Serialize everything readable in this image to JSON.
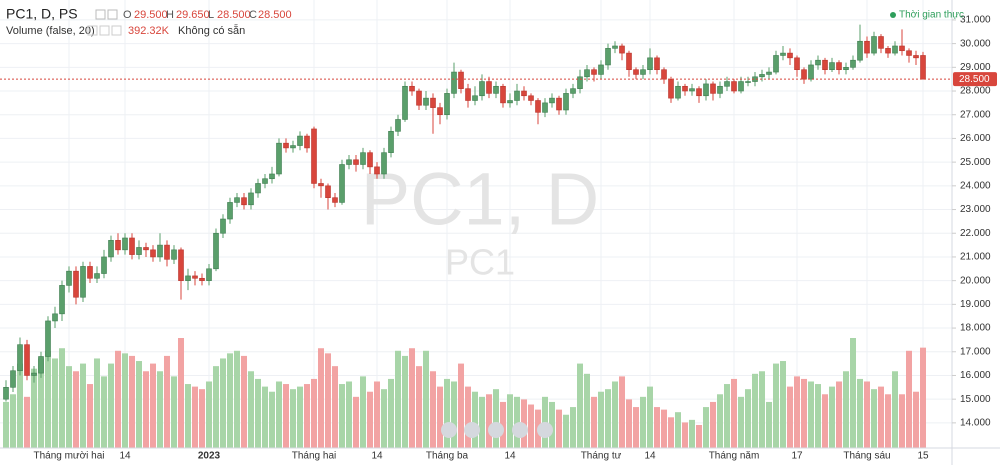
{
  "header": {
    "symbol": "PC1, D, PS",
    "o_label": "O",
    "open": "29.500",
    "h_label": "H",
    "high": "29.650",
    "l_label": "L",
    "low": "28.500",
    "c_label": "C",
    "close": "28.500",
    "volume_title": "Volume (false, 20)",
    "volume_value": "392.32K",
    "volume_note": "Không có sẵn",
    "realtime": "Thời gian thực",
    "watermark": "PC1, D",
    "watermark_sub": "PC1"
  },
  "chart_data": {
    "type": "candlestick",
    "categories": [
      null,
      null,
      null,
      null,
      null,
      null,
      null,
      null,
      null,
      "Tháng mười hai",
      null,
      null,
      null,
      null,
      null,
      null,
      null,
      "14",
      null,
      null,
      null,
      null,
      null,
      null,
      null,
      null,
      null,
      null,
      null,
      "2023",
      null,
      null,
      null,
      null,
      null,
      null,
      null,
      null,
      null,
      null,
      null,
      null,
      null,
      null,
      "Tháng hai",
      null,
      null,
      null,
      null,
      null,
      null,
      null,
      null,
      "14",
      null,
      null,
      null,
      null,
      null,
      null,
      null,
      null,
      null,
      "Tháng ba",
      null,
      null,
      null,
      null,
      null,
      null,
      null,
      null,
      "14",
      null,
      null,
      null,
      null,
      null,
      null,
      null,
      null,
      null,
      null,
      null,
      null,
      "Tháng tư",
      null,
      null,
      null,
      null,
      null,
      null,
      "14",
      null,
      null,
      null,
      null,
      null,
      null,
      null,
      null,
      null,
      null,
      null,
      "Tháng năm",
      null,
      null,
      null,
      null,
      null,
      null,
      null,
      null,
      "17",
      null,
      null,
      null,
      null,
      null,
      null,
      null,
      null,
      null,
      "Tháng sáu",
      null,
      null,
      null,
      null,
      null,
      null,
      null,
      "15"
    ],
    "open": [
      15.0,
      15.5,
      16.2,
      17.3,
      16.0,
      16.1,
      16.8,
      18.3,
      18.6,
      19.8,
      20.4,
      19.3,
      20.6,
      20.1,
      20.3,
      21.0,
      21.7,
      21.3,
      21.8,
      21.1,
      21.4,
      21.3,
      21.0,
      21.5,
      20.9,
      21.3,
      20.0,
      20.2,
      20.1,
      20.0,
      20.5,
      22.0,
      22.6,
      23.3,
      23.5,
      23.2,
      23.7,
      24.1,
      24.3,
      24.5,
      25.8,
      25.6,
      25.7,
      26.1,
      26.4,
      24.1,
      24.0,
      23.5,
      23.3,
      24.9,
      25.1,
      24.9,
      25.4,
      24.8,
      24.5,
      25.4,
      26.3,
      26.8,
      28.2,
      28.0,
      27.4,
      27.7,
      27.3,
      27.0,
      27.9,
      28.8,
      28.1,
      27.6,
      27.8,
      28.4,
      27.9,
      28.2,
      27.5,
      27.6,
      28.0,
      27.8,
      27.6,
      27.1,
      27.5,
      27.7,
      27.2,
      27.9,
      28.1,
      28.6,
      28.9,
      28.7,
      29.1,
      29.8,
      29.9,
      29.6,
      28.9,
      28.7,
      28.9,
      29.4,
      28.9,
      28.5,
      27.7,
      28.2,
      28.0,
      28.1,
      27.8,
      28.3,
      27.9,
      28.2,
      28.4,
      28.0,
      28.4,
      28.4,
      28.6,
      28.7,
      28.8,
      29.5,
      29.6,
      29.4,
      28.9,
      28.5,
      29.1,
      29.3,
      28.9,
      29.2,
      28.9,
      29.0,
      29.3,
      30.1,
      29.6,
      30.3,
      29.8,
      29.6,
      29.9,
      29.7,
      29.5,
      29.5
    ],
    "high": [
      15.8,
      16.4,
      17.6,
      17.5,
      16.4,
      17.0,
      18.5,
      18.9,
      20.0,
      20.6,
      20.6,
      20.8,
      20.8,
      20.6,
      21.3,
      21.9,
      22.0,
      22.0,
      22.0,
      21.7,
      21.6,
      21.5,
      22.0,
      21.7,
      21.5,
      21.4,
      20.5,
      20.4,
      20.3,
      20.7,
      22.2,
      22.8,
      23.5,
      23.7,
      23.7,
      23.9,
      24.3,
      24.5,
      24.8,
      26.0,
      26.0,
      25.9,
      26.3,
      26.2,
      26.5,
      24.3,
      24.1,
      23.7,
      25.1,
      25.3,
      25.3,
      25.6,
      25.5,
      25.0,
      25.6,
      26.5,
      27.0,
      28.4,
      28.4,
      28.1,
      28.0,
      27.9,
      27.5,
      28.1,
      29.2,
      28.9,
      28.3,
      28.2,
      28.7,
      28.6,
      28.4,
      28.3,
      27.9,
      28.3,
      28.2,
      27.9,
      27.7,
      27.7,
      27.9,
      27.8,
      28.1,
      28.3,
      28.9,
      29.1,
      29.0,
      29.3,
      30.0,
      30.1,
      30.0,
      29.7,
      29.0,
      29.1,
      29.8,
      29.5,
      29.0,
      28.6,
      28.4,
      28.3,
      28.3,
      28.2,
      28.5,
      28.4,
      28.4,
      28.6,
      28.5,
      28.6,
      28.6,
      28.8,
      28.9,
      29.0,
      29.7,
      29.9,
      29.8,
      29.5,
      29.0,
      29.3,
      29.5,
      29.4,
      29.4,
      29.3,
      29.2,
      29.5,
      30.8,
      30.3,
      30.5,
      30.4,
      29.9,
      30.1,
      30.6,
      29.8,
      29.7,
      29.65
    ],
    "low": [
      14.9,
      15.3,
      16.0,
      15.8,
      15.7,
      15.9,
      16.6,
      18.0,
      18.3,
      19.5,
      19.0,
      19.1,
      19.9,
      19.9,
      20.1,
      20.8,
      21.1,
      21.1,
      20.9,
      20.9,
      21.0,
      20.8,
      20.8,
      20.6,
      20.7,
      19.2,
      19.6,
      19.8,
      19.8,
      19.8,
      20.4,
      21.8,
      22.4,
      23.1,
      23.0,
      23.0,
      23.5,
      23.9,
      24.1,
      24.4,
      25.4,
      25.4,
      25.5,
      25.4,
      23.9,
      23.5,
      23.0,
      23.1,
      23.2,
      24.7,
      24.6,
      24.7,
      24.5,
      24.3,
      24.3,
      25.2,
      26.1,
      26.7,
      27.8,
      27.2,
      27.2,
      26.2,
      26.6,
      26.8,
      27.7,
      27.9,
      27.3,
      27.4,
      27.6,
      27.7,
      27.7,
      27.3,
      27.3,
      27.4,
      27.6,
      27.4,
      26.6,
      26.9,
      27.3,
      27.0,
      27.0,
      27.7,
      27.9,
      28.4,
      28.4,
      28.5,
      28.9,
      29.6,
      29.3,
      28.6,
      28.5,
      28.5,
      28.7,
      28.7,
      28.3,
      27.5,
      27.6,
      27.8,
      27.8,
      27.5,
      27.6,
      27.6,
      27.7,
      28.0,
      27.9,
      27.9,
      28.2,
      28.2,
      28.4,
      28.5,
      28.7,
      29.3,
      29.1,
      28.6,
      28.3,
      28.4,
      28.9,
      28.7,
      28.8,
      28.7,
      28.7,
      28.9,
      29.2,
      29.4,
      29.5,
      29.6,
      29.4,
      29.5,
      29.5,
      29.2,
      29.1,
      28.5
    ],
    "close": [
      15.5,
      16.2,
      17.3,
      16.0,
      16.1,
      16.8,
      18.3,
      18.6,
      19.8,
      20.4,
      19.3,
      20.6,
      20.1,
      20.3,
      21.0,
      21.7,
      21.3,
      21.8,
      21.1,
      21.4,
      21.3,
      21.0,
      21.5,
      20.9,
      21.3,
      20.0,
      20.2,
      20.1,
      20.0,
      20.5,
      22.0,
      22.6,
      23.3,
      23.5,
      23.2,
      23.7,
      24.1,
      24.3,
      24.5,
      25.8,
      25.6,
      25.7,
      26.1,
      25.6,
      24.1,
      24.0,
      23.5,
      23.3,
      24.9,
      25.1,
      24.9,
      25.4,
      24.8,
      24.5,
      25.4,
      26.3,
      26.8,
      28.2,
      28.0,
      27.4,
      27.7,
      27.3,
      27.0,
      27.9,
      28.8,
      28.1,
      27.6,
      27.8,
      28.4,
      27.9,
      28.2,
      27.5,
      27.6,
      28.0,
      27.8,
      27.6,
      27.1,
      27.5,
      27.7,
      27.2,
      27.9,
      28.1,
      28.6,
      28.9,
      28.7,
      29.1,
      29.8,
      29.9,
      29.6,
      28.9,
      28.7,
      28.9,
      29.4,
      28.9,
      28.5,
      27.7,
      28.2,
      28.0,
      28.1,
      27.8,
      28.3,
      27.9,
      28.2,
      28.4,
      28.0,
      28.4,
      28.4,
      28.6,
      28.7,
      28.8,
      29.5,
      29.6,
      29.4,
      28.9,
      28.5,
      29.1,
      29.3,
      28.9,
      29.2,
      28.9,
      29.0,
      29.3,
      30.1,
      29.6,
      30.3,
      29.8,
      29.6,
      29.9,
      29.7,
      29.5,
      29.4,
      28.5
    ],
    "volume": [
      180,
      210,
      330,
      200,
      310,
      350,
      380,
      350,
      390,
      320,
      300,
      330,
      250,
      350,
      280,
      330,
      380,
      370,
      360,
      340,
      300,
      330,
      300,
      360,
      280,
      430,
      250,
      240,
      230,
      260,
      320,
      350,
      370,
      380,
      360,
      300,
      270,
      240,
      220,
      260,
      250,
      230,
      240,
      250,
      270,
      390,
      370,
      320,
      250,
      260,
      200,
      280,
      220,
      260,
      230,
      270,
      380,
      360,
      390,
      320,
      380,
      300,
      240,
      270,
      260,
      330,
      240,
      220,
      200,
      210,
      230,
      180,
      210,
      200,
      190,
      170,
      150,
      200,
      180,
      150,
      130,
      160,
      330,
      290,
      200,
      220,
      230,
      260,
      280,
      190,
      160,
      200,
      240,
      160,
      150,
      120,
      140,
      100,
      110,
      90,
      160,
      180,
      210,
      250,
      270,
      200,
      230,
      290,
      300,
      180,
      330,
      340,
      240,
      280,
      270,
      260,
      250,
      210,
      240,
      260,
      300,
      430,
      270,
      260,
      230,
      240,
      210,
      300,
      210,
      380,
      220,
      392.32
    ],
    "up_color": "#5a9f6b",
    "down_color": "#d8463c",
    "volume_up_color": "#a8d5a8",
    "volume_down_color": "#f2a3a3",
    "ylim": [
      12.94,
      31.84
    ],
    "yticks": [
      {
        "value": 14,
        "label": "14.000"
      },
      {
        "value": 15,
        "label": "15.000"
      },
      {
        "value": 16,
        "label": "16.000"
      },
      {
        "value": 17,
        "label": "17.000"
      },
      {
        "value": 18,
        "label": "18.000"
      },
      {
        "value": 19,
        "label": "19.000"
      },
      {
        "value": 20,
        "label": "20.000"
      },
      {
        "value": 21,
        "label": "21.000"
      },
      {
        "value": 22,
        "label": "22.000"
      },
      {
        "value": 23,
        "label": "23.000"
      },
      {
        "value": 24,
        "label": "24.000"
      },
      {
        "value": 25,
        "label": "25.000"
      },
      {
        "value": 26,
        "label": "26.000"
      },
      {
        "value": 27,
        "label": "27.000"
      },
      {
        "value": 28,
        "label": "28.000"
      },
      {
        "value": 29,
        "label": "29.000"
      },
      {
        "value": 30,
        "label": "30.000"
      },
      {
        "value": 31,
        "label": "31.000"
      }
    ],
    "grid": true
  }
}
